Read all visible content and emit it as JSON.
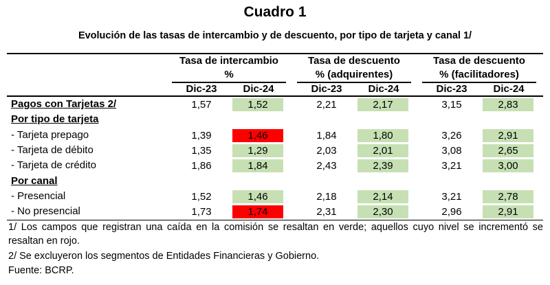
{
  "title": "Cuadro 1",
  "subtitle": "Evolución de las tasas de intercambio y de descuento, por tipo de tarjeta y canal 1/",
  "column_groups": [
    {
      "line1": "Tasa de intercambio",
      "line2": "%"
    },
    {
      "line1": "Tasa de descuento",
      "line2": "% (adquirentes)"
    },
    {
      "line1": "Tasa de descuento",
      "line2": "% (facilitadores)"
    }
  ],
  "columns": [
    "Dic-23",
    "Dic-24",
    "Dic-23",
    "Dic-24",
    "Dic-23",
    "Dic-24"
  ],
  "rows": [
    {
      "label": "Pagos con Tarjetas 2/",
      "type": "section",
      "values": [
        "1,57",
        "1,52",
        "2,21",
        "2,17",
        "3,15",
        "2,83"
      ],
      "highlight": [
        "",
        "green",
        "",
        "green",
        "",
        "green"
      ]
    },
    {
      "label": "Por tipo de tarjeta",
      "type": "section"
    },
    {
      "label": "- Tarjeta prepago",
      "type": "item",
      "values": [
        "1,39",
        "1,46",
        "1,84",
        "1,80",
        "3,26",
        "2,91"
      ],
      "highlight": [
        "",
        "red",
        "",
        "green",
        "",
        "green"
      ]
    },
    {
      "label": "- Tarjeta de débito",
      "type": "item",
      "values": [
        "1,35",
        "1,29",
        "2,03",
        "2,01",
        "3,08",
        "2,65"
      ],
      "highlight": [
        "",
        "green",
        "",
        "green",
        "",
        "green"
      ]
    },
    {
      "label": "- Tarjeta de crédito",
      "type": "item",
      "values": [
        "1,86",
        "1,84",
        "2,43",
        "2,39",
        "3,21",
        "3,00"
      ],
      "highlight": [
        "",
        "green",
        "",
        "green",
        "",
        "green"
      ]
    },
    {
      "label": "Por canal",
      "type": "section"
    },
    {
      "label": "- Presencial",
      "type": "item",
      "values": [
        "1,52",
        "1,46",
        "2,18",
        "2,14",
        "3,21",
        "2,78"
      ],
      "highlight": [
        "",
        "green",
        "",
        "green",
        "",
        "green"
      ]
    },
    {
      "label": "- No presencial",
      "type": "item",
      "values": [
        "1,73",
        "1,74",
        "2,31",
        "2,30",
        "2,96",
        "2,91"
      ],
      "highlight": [
        "",
        "red",
        "",
        "green",
        "",
        "green"
      ]
    }
  ],
  "colors": {
    "green": "#c6e0b4",
    "red": "#ff0000"
  },
  "footnotes": [
    "1/ Los campos que registran una caída en la comisión se resaltan en verde; aquellos cuyo nivel se incrementó se resaltan en rojo.",
    "2/ Se excluyeron los segmentos de Entidades Financieras y Gobierno.",
    "Fuente: BCRP."
  ]
}
